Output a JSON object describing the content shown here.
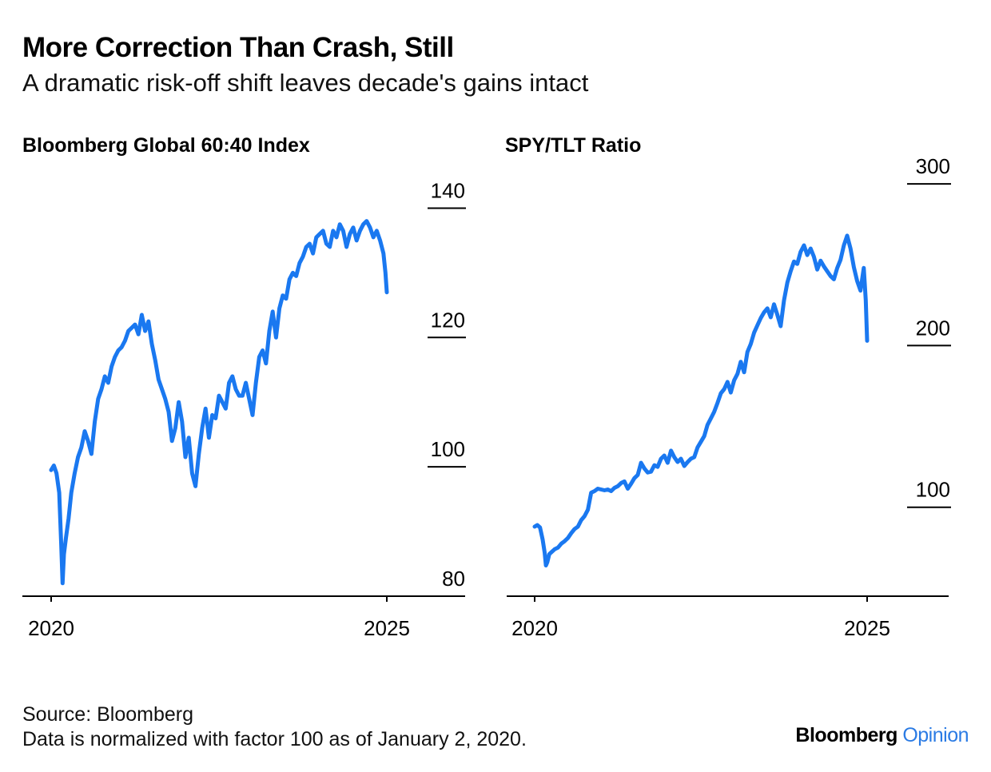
{
  "header": {
    "title": "More Correction Than Crash, Still",
    "subtitle": "A dramatic risk-off shift leaves decade's gains intact"
  },
  "footer": {
    "source": "Source: Bloomberg",
    "note": "Data is normalized with factor 100 as of January 2, 2020.",
    "brand_main": "Bloomberg",
    "brand_accent": "Opinion"
  },
  "colors": {
    "series": "#1a78f0",
    "axis": "#000000"
  },
  "chart_data": [
    {
      "type": "line",
      "title": "Bloomberg Global 60:40 Index",
      "xlabel": "",
      "ylabel": "",
      "xlim": [
        2020.0,
        2025.0
      ],
      "ylim": [
        80,
        145
      ],
      "x_ticks": [
        2020,
        2025
      ],
      "x_tick_labels": [
        "2020",
        "2025"
      ],
      "y_ticks": [
        80,
        100,
        120,
        140
      ],
      "y_tick_labels": [
        "80",
        "100",
        "120",
        "140"
      ],
      "grid": false,
      "series": [
        {
          "x": [
            2020.0,
            2020.04,
            2020.08,
            2020.12,
            2020.15,
            2020.17,
            2020.19,
            2020.22,
            2020.26,
            2020.3,
            2020.35,
            2020.4,
            2020.45,
            2020.5,
            2020.55,
            2020.6,
            2020.65,
            2020.7,
            2020.75,
            2020.8,
            2020.85,
            2020.9,
            2020.95,
            2021.0,
            2021.05,
            2021.1,
            2021.15,
            2021.2,
            2021.25,
            2021.3,
            2021.35,
            2021.4,
            2021.45,
            2021.5,
            2021.55,
            2021.6,
            2021.65,
            2021.7,
            2021.75,
            2021.8,
            2021.85,
            2021.9,
            2021.95,
            2022.0,
            2022.05,
            2022.1,
            2022.15,
            2022.2,
            2022.25,
            2022.3,
            2022.35,
            2022.4,
            2022.45,
            2022.5,
            2022.55,
            2022.6,
            2022.65,
            2022.7,
            2022.75,
            2022.8,
            2022.85,
            2022.9,
            2022.95,
            2023.0,
            2023.05,
            2023.1,
            2023.15,
            2023.2,
            2023.25,
            2023.3,
            2023.35,
            2023.4,
            2023.45,
            2023.5,
            2023.55,
            2023.6,
            2023.65,
            2023.7,
            2023.75,
            2023.8,
            2023.85,
            2023.9,
            2023.95,
            2024.0,
            2024.05,
            2024.1,
            2024.15,
            2024.2,
            2024.25,
            2024.3,
            2024.35,
            2024.4,
            2024.45,
            2024.5,
            2024.55,
            2024.6,
            2024.65,
            2024.7,
            2024.75,
            2024.8,
            2024.85,
            2024.9,
            2024.95,
            2024.98,
            2025.0
          ],
          "y": [
            99.5,
            100.2,
            99.0,
            96.0,
            88.0,
            82.0,
            86.5,
            89.0,
            92.0,
            96.0,
            99.0,
            101.5,
            103.0,
            105.5,
            104.0,
            102.0,
            107.0,
            110.5,
            112.0,
            114.0,
            113.0,
            115.5,
            117.0,
            118.0,
            118.5,
            119.5,
            121.0,
            121.5,
            122.0,
            120.5,
            123.5,
            121.0,
            122.5,
            119.0,
            116.5,
            113.5,
            112.0,
            110.5,
            108.5,
            104.0,
            106.0,
            110.0,
            107.0,
            101.5,
            104.5,
            99.0,
            97.0,
            102.0,
            106.0,
            109.0,
            104.5,
            108.0,
            107.5,
            111.0,
            110.0,
            109.0,
            113.0,
            114.0,
            112.0,
            111.0,
            111.0,
            113.0,
            110.5,
            108.0,
            113.0,
            117.0,
            118.0,
            116.0,
            121.0,
            124.0,
            120.0,
            124.5,
            126.5,
            126.0,
            129.0,
            130.0,
            129.5,
            131.5,
            132.5,
            134.0,
            134.5,
            133.0,
            135.5,
            136.0,
            136.5,
            134.5,
            134.0,
            136.5,
            135.5,
            137.5,
            136.5,
            134.0,
            136.0,
            137.0,
            135.0,
            136.5,
            137.5,
            138.0,
            137.0,
            135.5,
            136.5,
            135.0,
            133.0,
            130.0,
            127.0
          ]
        }
      ]
    },
    {
      "type": "line",
      "title": "SPY/TLT Ratio",
      "xlabel": "",
      "ylabel": "",
      "xlim": [
        2020.0,
        2025.0
      ],
      "ylim": [
        45,
        305
      ],
      "x_ticks": [
        2020,
        2025
      ],
      "x_tick_labels": [
        "2020",
        "2025"
      ],
      "y_ticks": [
        100,
        200,
        300
      ],
      "y_tick_labels": [
        "100",
        "200",
        "300"
      ],
      "grid": false,
      "series": [
        {
          "x": [
            2020.0,
            2020.04,
            2020.08,
            2020.12,
            2020.15,
            2020.17,
            2020.19,
            2020.22,
            2020.26,
            2020.3,
            2020.35,
            2020.4,
            2020.45,
            2020.5,
            2020.55,
            2020.6,
            2020.65,
            2020.7,
            2020.75,
            2020.8,
            2020.85,
            2020.9,
            2020.95,
            2021.0,
            2021.05,
            2021.1,
            2021.15,
            2021.2,
            2021.25,
            2021.3,
            2021.35,
            2021.4,
            2021.45,
            2021.5,
            2021.55,
            2021.6,
            2021.65,
            2021.7,
            2021.75,
            2021.8,
            2021.85,
            2021.9,
            2021.95,
            2022.0,
            2022.05,
            2022.1,
            2022.15,
            2022.2,
            2022.25,
            2022.3,
            2022.35,
            2022.4,
            2022.45,
            2022.5,
            2022.55,
            2022.6,
            2022.65,
            2022.7,
            2022.75,
            2022.8,
            2022.85,
            2022.9,
            2022.95,
            2023.0,
            2023.05,
            2023.1,
            2023.15,
            2023.2,
            2023.25,
            2023.3,
            2023.35,
            2023.4,
            2023.45,
            2023.5,
            2023.55,
            2023.6,
            2023.65,
            2023.7,
            2023.75,
            2023.8,
            2023.85,
            2023.9,
            2023.95,
            2024.0,
            2024.05,
            2024.1,
            2024.15,
            2024.2,
            2024.25,
            2024.3,
            2024.35,
            2024.4,
            2024.45,
            2024.5,
            2024.55,
            2024.6,
            2024.65,
            2024.7,
            2024.75,
            2024.8,
            2024.85,
            2024.9,
            2024.95,
            2024.98,
            2025.0
          ],
          "y": [
            88.0,
            89.0,
            87.5,
            80.0,
            72.0,
            64.0,
            66.0,
            71.0,
            72.5,
            74.0,
            75.0,
            77.5,
            79.0,
            81.0,
            84.0,
            86.5,
            88.0,
            92.0,
            94.5,
            98.5,
            109.0,
            110.0,
            111.5,
            111.0,
            110.5,
            111.0,
            110.0,
            112.0,
            113.0,
            115.0,
            116.0,
            111.5,
            114.5,
            118.0,
            120.0,
            127.5,
            124.0,
            121.5,
            122.0,
            126.0,
            125.0,
            130.0,
            132.0,
            127.5,
            135.0,
            131.0,
            128.0,
            130.0,
            125.5,
            128.0,
            130.0,
            131.0,
            137.0,
            140.5,
            144.0,
            151.0,
            155.0,
            159.0,
            164.5,
            170.5,
            173.0,
            177.5,
            171.0,
            178.5,
            182.5,
            190.0,
            183.5,
            196.0,
            201.0,
            208.0,
            212.5,
            217.0,
            220.5,
            223.0,
            217.5,
            225.5,
            219.0,
            212.0,
            228.0,
            239.0,
            246.0,
            252.0,
            250.5,
            258.0,
            262.0,
            256.0,
            260.0,
            255.0,
            247.0,
            252.5,
            249.0,
            246.0,
            243.0,
            241.0,
            248.0,
            253.0,
            262.0,
            268.0,
            260.0,
            248.5,
            240.0,
            234.0,
            248.0,
            228.0,
            203.0
          ]
        }
      ]
    }
  ]
}
